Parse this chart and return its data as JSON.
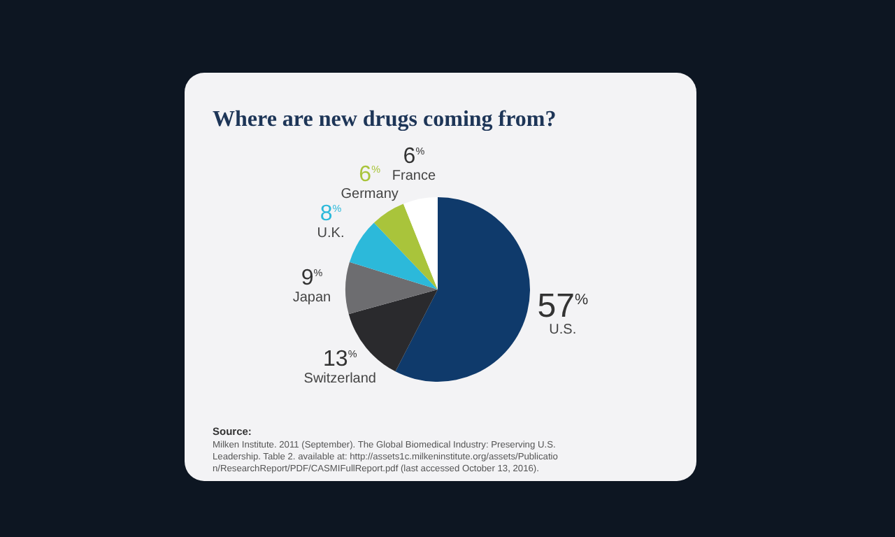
{
  "chart_data": {
    "type": "pie",
    "title": "Where are new drugs coming from?",
    "categories": [
      "U.S.",
      "Switzerland",
      "Japan",
      "U.K.",
      "Germany",
      "France"
    ],
    "values": [
      57,
      13,
      9,
      8,
      6,
      6
    ],
    "colors": [
      "#0f3a6b",
      "#2a2a2d",
      "#6d6d70",
      "#2cb9da",
      "#a9c43b",
      "#ffffff"
    ],
    "value_labels": [
      "57$^{%}$",
      "13$^{%}$",
      "9$^{%}$",
      "8$^{%}$",
      "6$^{%}$",
      "6$^{%}$"
    ],
    "annotations": [
      "Source:",
      "Milken Institute. 2011 (September). The Global Biomedical Industry: Preserving U.S. Leadership. Table 2. available at: http://assets1c.milkeninstitute.org/assets/Publication/ResearchReport/PDF/CASMIFullReport.pdf (last accessed October 13, 2016)."
    ]
  }
}
